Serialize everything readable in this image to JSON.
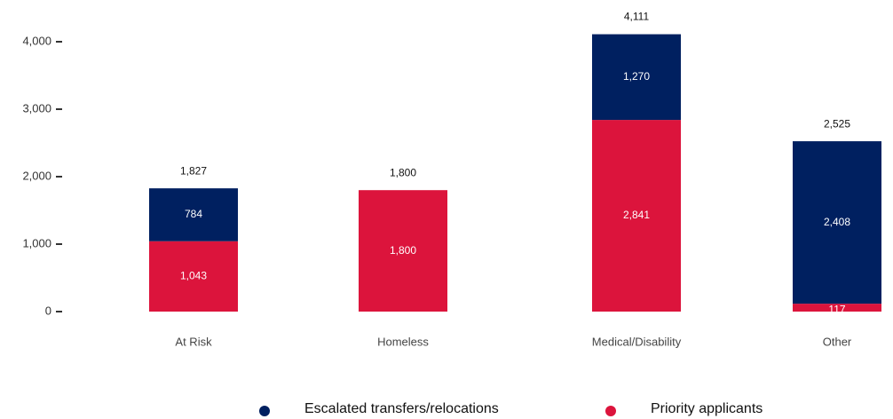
{
  "chart_data": {
    "type": "stacked_bar",
    "categories": [
      "At Risk",
      "Homeless",
      "Medical/Disability",
      "Other"
    ],
    "series": [
      {
        "name": "Escalated transfers/relocations",
        "color": "#002060",
        "values": [
          784,
          null,
          1270,
          2408
        ],
        "value_labels": [
          "784",
          null,
          "1,270",
          "2,408"
        ]
      },
      {
        "name": "Priority applicants",
        "color": "#dc143c",
        "values": [
          1043,
          1800,
          2841,
          117
        ],
        "value_labels": [
          "1,043",
          "1,800",
          "2,841",
          "117"
        ]
      }
    ],
    "totals": [
      1827,
      1800,
      4111,
      2525
    ],
    "total_labels": [
      "1,827",
      "1,800",
      "4,111",
      "2,525"
    ],
    "ylim": [
      0,
      4000
    ],
    "yticks": [
      0,
      {
        "value": 1000,
        "label": "1,000"
      },
      {
        "value": 2000,
        "label": "2,000"
      },
      {
        "value": 3000,
        "label": "3,000"
      },
      {
        "value": 4000,
        "label": "4,000"
      }
    ],
    "legend": "bottom"
  }
}
